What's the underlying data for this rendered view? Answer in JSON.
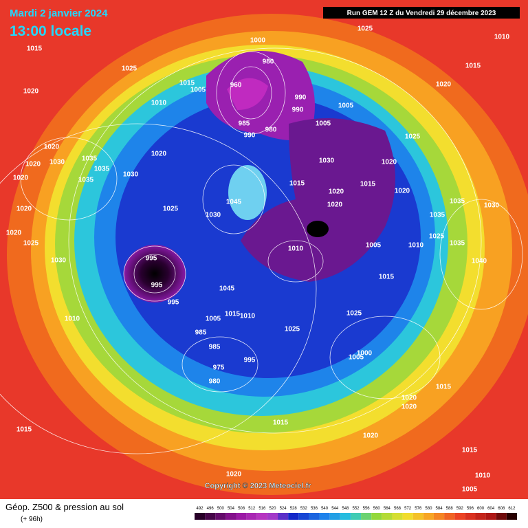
{
  "header": {
    "date": "Mardi 2 janvier 2024",
    "time": "13:00 locale"
  },
  "run_info": "Run GEM 12 Z du Vendredi 29 décembre 2023",
  "copyright": "Copyright © 2023 Meteociel.fr",
  "legend": {
    "title": "Géop. Z500 & pression au sol",
    "subtitle": "(+ 96h)",
    "ticks": [
      492,
      496,
      500,
      504,
      508,
      512,
      516,
      520,
      524,
      528,
      532,
      536,
      540,
      544,
      548,
      552,
      556,
      560,
      564,
      568,
      572,
      576,
      580,
      584,
      588,
      592,
      596,
      600,
      604,
      608,
      612
    ]
  },
  "pressure_labels": [
    1025,
    1010,
    1015,
    1000,
    1025,
    1015,
    980,
    1015,
    1005,
    960,
    1020,
    1020,
    990,
    1010,
    990,
    1005,
    1005,
    985,
    980,
    990,
    1025,
    1020,
    1030,
    1035,
    1020,
    1030,
    1020,
    1020,
    1035,
    1020,
    1035,
    1030,
    1015,
    1015,
    1020,
    1020,
    1035,
    1030,
    1020,
    1025,
    1045,
    1020,
    1030,
    1035,
    1020,
    1025,
    1035,
    1025,
    1005,
    1010,
    1010,
    1040,
    995,
    1030,
    1015,
    995,
    1045,
    995,
    1015,
    1010,
    1025,
    1010,
    1005,
    1025,
    985,
    985,
    1000,
    1005,
    995,
    975,
    980,
    1020,
    1020,
    1015,
    1015,
    1015,
    1020,
    1015,
    1020,
    1010,
    1005
  ]
}
